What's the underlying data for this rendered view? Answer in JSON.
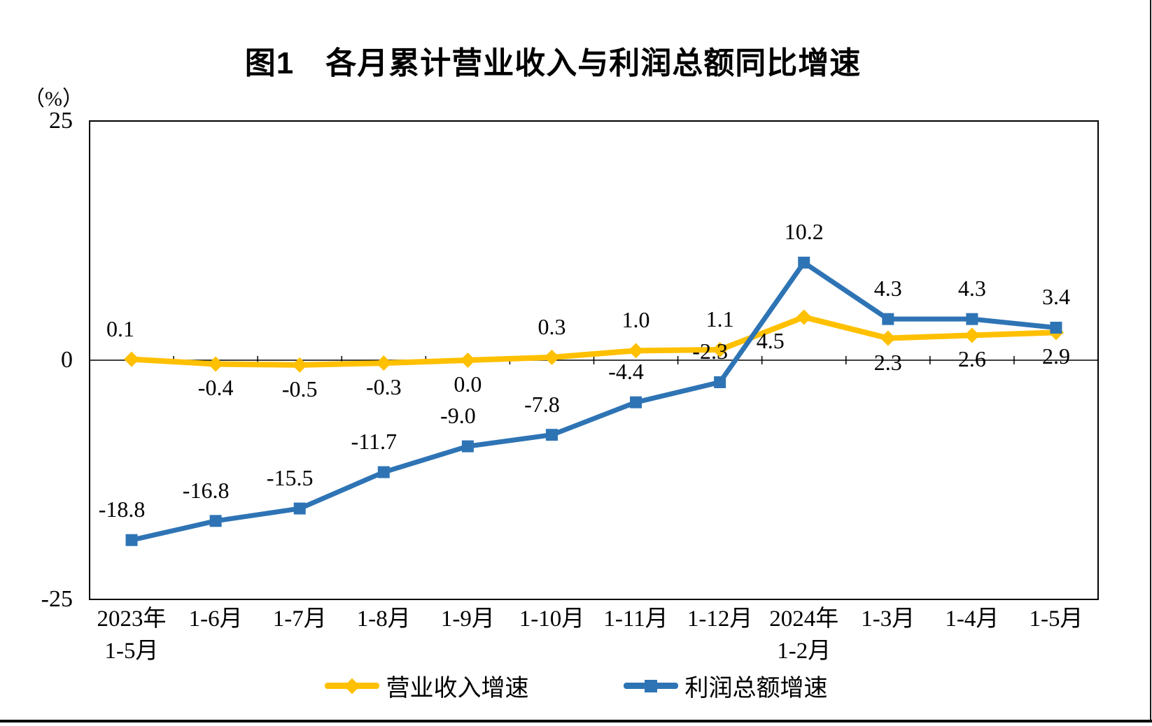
{
  "page": {
    "title": "图1　各月累计营业收入与利润总额同比增速"
  },
  "chart_data": {
    "type": "line",
    "title": "图1　各月累计营业收入与利润总额同比增速",
    "unit": "（%）",
    "xlabel": "",
    "ylabel": "",
    "ylim": [
      -25,
      25
    ],
    "yticks": [
      25,
      0,
      -25
    ],
    "ytick_labels": [
      "25",
      "0",
      "-25"
    ],
    "grid": false,
    "legend_position": "bottom",
    "axis_color": "#000000",
    "categories": [
      [
        "2023年",
        "1-5月"
      ],
      [
        "1-6月"
      ],
      [
        "1-7月"
      ],
      [
        "1-8月"
      ],
      [
        "1-9月"
      ],
      [
        "1-10月"
      ],
      [
        "1-11月"
      ],
      [
        "1-12月"
      ],
      [
        "2024年",
        "1-2月"
      ],
      [
        "1-3月"
      ],
      [
        "1-4月"
      ],
      [
        "1-5月"
      ]
    ],
    "series": [
      {
        "name": "营业收入增速",
        "color": "#FFC000",
        "marker": "diamond",
        "values": [
          0.1,
          -0.4,
          -0.5,
          -0.3,
          0.0,
          0.3,
          1.0,
          1.1,
          4.5,
          2.3,
          2.6,
          2.9
        ],
        "labels": [
          "0.1",
          "-0.4",
          "-0.5",
          "-0.3",
          "0.0",
          "0.3",
          "1.0",
          "1.1",
          "4.5",
          "2.3",
          "2.6",
          "2.9"
        ],
        "label_side": [
          "above",
          "below",
          "below",
          "below",
          "below",
          "above",
          "above",
          "above",
          "below",
          "below",
          "below",
          "below"
        ]
      },
      {
        "name": "利润总额增速",
        "color": "#2E74B5",
        "marker": "square",
        "values": [
          -18.8,
          -16.8,
          -15.5,
          -11.7,
          -9.0,
          -7.8,
          -4.4,
          -2.3,
          10.2,
          4.3,
          4.3,
          3.4
        ],
        "labels": [
          "-18.8",
          "-16.8",
          "-15.5",
          "-11.7",
          "-9.0",
          "-7.8",
          "-4.4",
          "-2.3",
          "10.2",
          "4.3",
          "4.3",
          "3.4"
        ],
        "label_side": [
          "above",
          "above",
          "above",
          "above",
          "above",
          "above",
          "above",
          "above",
          "above",
          "above",
          "above",
          "above"
        ]
      }
    ]
  }
}
